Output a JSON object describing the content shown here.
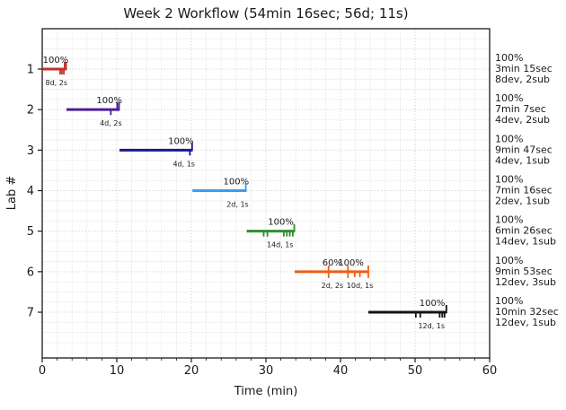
{
  "chart_data": {
    "type": "line",
    "subtype": "gantt-timeline",
    "title": "Week 2 Workflow (54min 16sec; 56d; 11s)",
    "xlabel": "Time (min)",
    "ylabel": "Lab #",
    "xlim": [
      0,
      60
    ],
    "x_ticks": [
      0,
      10,
      20,
      30,
      40,
      50,
      60
    ],
    "x_minor_step": 2,
    "y_categories": [
      "1",
      "2",
      "3",
      "4",
      "5",
      "6",
      "7"
    ],
    "grid": {
      "major": true,
      "minor": true,
      "style": "dotted"
    },
    "legend_position": "none",
    "colors": {
      "in_plot_percent": "#1a1a1a",
      "in_plot_duration": "#3c3c3c",
      "major_grid": "#c9c9c9",
      "minor_grid": "#efefef",
      "spine": "#1a1a1a"
    },
    "labs": [
      {
        "lab": "1",
        "color": "#c1332b",
        "start_min": 0,
        "end_min": 3.25,
        "percent_labels": [
          {
            "text": "100%",
            "x_min": 1.8
          }
        ],
        "duration_labels": [
          {
            "text": "8d, 2s",
            "x_min": 1.9
          }
        ],
        "ticks": [
          {
            "x_min": 2.4,
            "dir": "down"
          },
          {
            "x_min": 2.65,
            "dir": "down"
          },
          {
            "x_min": 2.9,
            "dir": "down"
          },
          {
            "x_min": 3.0,
            "dir": "up"
          },
          {
            "x_min": 3.2,
            "dir": "up"
          }
        ],
        "summary": {
          "percent": "100%",
          "time": "3min 15sec",
          "devsub": "8dev, 2sub",
          "percent_color": "#7e1f1a"
        }
      },
      {
        "lab": "2",
        "color": "#4a1d96",
        "start_min": 3.25,
        "end_min": 10.3667,
        "percent_labels": [
          {
            "text": "100%",
            "x_min": 9.0
          }
        ],
        "duration_labels": [
          {
            "text": "4d, 2s",
            "x_min": 9.2
          }
        ],
        "ticks": [
          {
            "x_min": 9.2,
            "dir": "down"
          },
          {
            "x_min": 10.05,
            "dir": "up"
          },
          {
            "x_min": 10.3,
            "dir": "up"
          }
        ],
        "summary": {
          "percent": "100%",
          "time": "7min 7sec",
          "devsub": "4dev, 2sub",
          "percent_color": "#1a1a1a"
        }
      },
      {
        "lab": "3",
        "color": "#19198f",
        "start_min": 10.3667,
        "end_min": 20.15,
        "percent_labels": [
          {
            "text": "100%",
            "x_min": 18.6
          }
        ],
        "duration_labels": [
          {
            "text": "4d, 1s",
            "x_min": 19.0
          }
        ],
        "ticks": [
          {
            "x_min": 19.8,
            "dir": "down"
          },
          {
            "x_min": 20.1,
            "dir": "up"
          }
        ],
        "summary": {
          "percent": "100%",
          "time": "9min 47sec",
          "devsub": "4dev, 1sub",
          "percent_color": "#1a1a1a"
        }
      },
      {
        "lab": "4",
        "color": "#3d9bf0",
        "start_min": 20.15,
        "end_min": 27.4167,
        "percent_labels": [
          {
            "text": "100%",
            "x_min": 26.0
          }
        ],
        "duration_labels": [
          {
            "text": "2d, 1s",
            "x_min": 26.2
          }
        ],
        "ticks": [
          {
            "x_min": 27.3,
            "dir": "up"
          }
        ],
        "summary": {
          "percent": "100%",
          "time": "7min 16sec",
          "devsub": "2dev, 1sub",
          "percent_color": "#3d9bf0"
        }
      },
      {
        "lab": "5",
        "color": "#2e8f2e",
        "start_min": 27.4167,
        "end_min": 33.85,
        "percent_labels": [
          {
            "text": "100%",
            "x_min": 32.0
          }
        ],
        "duration_labels": [
          {
            "text": "14d, 1s",
            "x_min": 31.9
          }
        ],
        "ticks": [
          {
            "x_min": 29.7,
            "dir": "down"
          },
          {
            "x_min": 30.2,
            "dir": "down"
          },
          {
            "x_min": 32.4,
            "dir": "down"
          },
          {
            "x_min": 32.8,
            "dir": "down"
          },
          {
            "x_min": 33.2,
            "dir": "down"
          },
          {
            "x_min": 33.6,
            "dir": "down"
          },
          {
            "x_min": 33.8,
            "dir": "up"
          }
        ],
        "summary": {
          "percent": "100%",
          "time": "6min 26sec",
          "devsub": "14dev, 1sub",
          "percent_color": "#1a1a1a"
        }
      },
      {
        "lab": "6",
        "color": "#ef5d17",
        "start_min": 33.85,
        "end_min": 43.7333,
        "percent_labels": [
          {
            "text": "60%",
            "x_min": 38.9
          },
          {
            "text": "100%",
            "x_min": 41.4
          }
        ],
        "duration_labels": [
          {
            "text": "2d, 2s",
            "x_min": 38.9
          },
          {
            "text": "10d, 1s",
            "x_min": 42.6
          }
        ],
        "ticks": [
          {
            "x_min": 38.4,
            "dir": "cross"
          },
          {
            "x_min": 41.0,
            "dir": "cross"
          },
          {
            "x_min": 41.9,
            "dir": "down"
          },
          {
            "x_min": 42.6,
            "dir": "down"
          },
          {
            "x_min": 43.73,
            "dir": "cross"
          }
        ],
        "summary": {
          "percent": "100%",
          "time": "9min 53sec",
          "devsub": "12dev, 3sub",
          "percent_color": "#ef5d17"
        }
      },
      {
        "lab": "7",
        "color": "#141414",
        "start_min": 43.7333,
        "end_min": 54.2667,
        "percent_labels": [
          {
            "text": "100%",
            "x_min": 52.3
          }
        ],
        "duration_labels": [
          {
            "text": "12d, 1s",
            "x_min": 52.2
          }
        ],
        "ticks": [
          {
            "x_min": 50.1,
            "dir": "down"
          },
          {
            "x_min": 50.7,
            "dir": "down"
          },
          {
            "x_min": 53.3,
            "dir": "down"
          },
          {
            "x_min": 53.65,
            "dir": "down"
          },
          {
            "x_min": 53.95,
            "dir": "down"
          },
          {
            "x_min": 54.2,
            "dir": "up"
          }
        ],
        "summary": {
          "percent": "100%",
          "time": "10min 32sec",
          "devsub": "12dev, 1sub",
          "percent_color": "#1a1a1a"
        }
      }
    ]
  }
}
